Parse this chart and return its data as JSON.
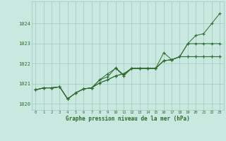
{
  "background_color": "#c8e8e0",
  "plot_bg_color": "#c8e8e0",
  "grid_color": "#a0c8c0",
  "line_color": "#2d6b2d",
  "xlabel": "Graphe pression niveau de la mer (hPa)",
  "ylim": [
    1019.7,
    1025.1
  ],
  "xlim": [
    -0.5,
    23.5
  ],
  "yticks": [
    1020,
    1021,
    1022,
    1023,
    1024
  ],
  "xtick_labels": [
    "0",
    "1",
    "2",
    "3",
    "4",
    "5",
    "6",
    "7",
    "8",
    "9",
    "10",
    "11",
    "12",
    "13",
    "14",
    "15",
    "16",
    "17",
    "18",
    "19",
    "20",
    "21",
    "22",
    "23"
  ],
  "series": [
    [
      1020.7,
      1020.8,
      1020.8,
      1020.85,
      1020.25,
      1020.55,
      1020.75,
      1020.8,
      1021.2,
      1021.35,
      1021.8,
      1021.45,
      1021.77,
      1021.77,
      1021.77,
      1021.77,
      1022.15,
      1022.2,
      1022.35,
      1023.0,
      1023.4,
      1023.5,
      1024.0,
      1024.5
    ],
    [
      1020.7,
      1020.8,
      1020.8,
      1020.85,
      1020.25,
      1020.55,
      1020.75,
      1020.8,
      1021.05,
      1021.2,
      1021.4,
      1021.5,
      1021.77,
      1021.77,
      1021.77,
      1021.77,
      1022.15,
      1022.2,
      1022.35,
      1023.0,
      1023.0,
      1023.0,
      1023.0,
      1023.0
    ],
    [
      1020.7,
      1020.8,
      1020.8,
      1020.85,
      1020.25,
      1020.55,
      1020.75,
      1020.8,
      1021.2,
      1021.5,
      1021.77,
      1021.4,
      1021.77,
      1021.77,
      1021.77,
      1021.77,
      1022.55,
      1022.2,
      1022.35,
      1022.35,
      1022.35,
      1022.35,
      1022.35,
      1022.35
    ],
    [
      1020.7,
      1020.8,
      1020.8,
      1020.85,
      1020.25,
      1020.55,
      1020.75,
      1020.8,
      1021.05,
      1021.2,
      1021.4,
      1021.5,
      1021.77,
      1021.77,
      1021.77,
      1021.77,
      1022.15,
      1022.2,
      1022.35,
      1022.35,
      1022.35,
      1022.35,
      1022.35,
      1022.35
    ]
  ]
}
